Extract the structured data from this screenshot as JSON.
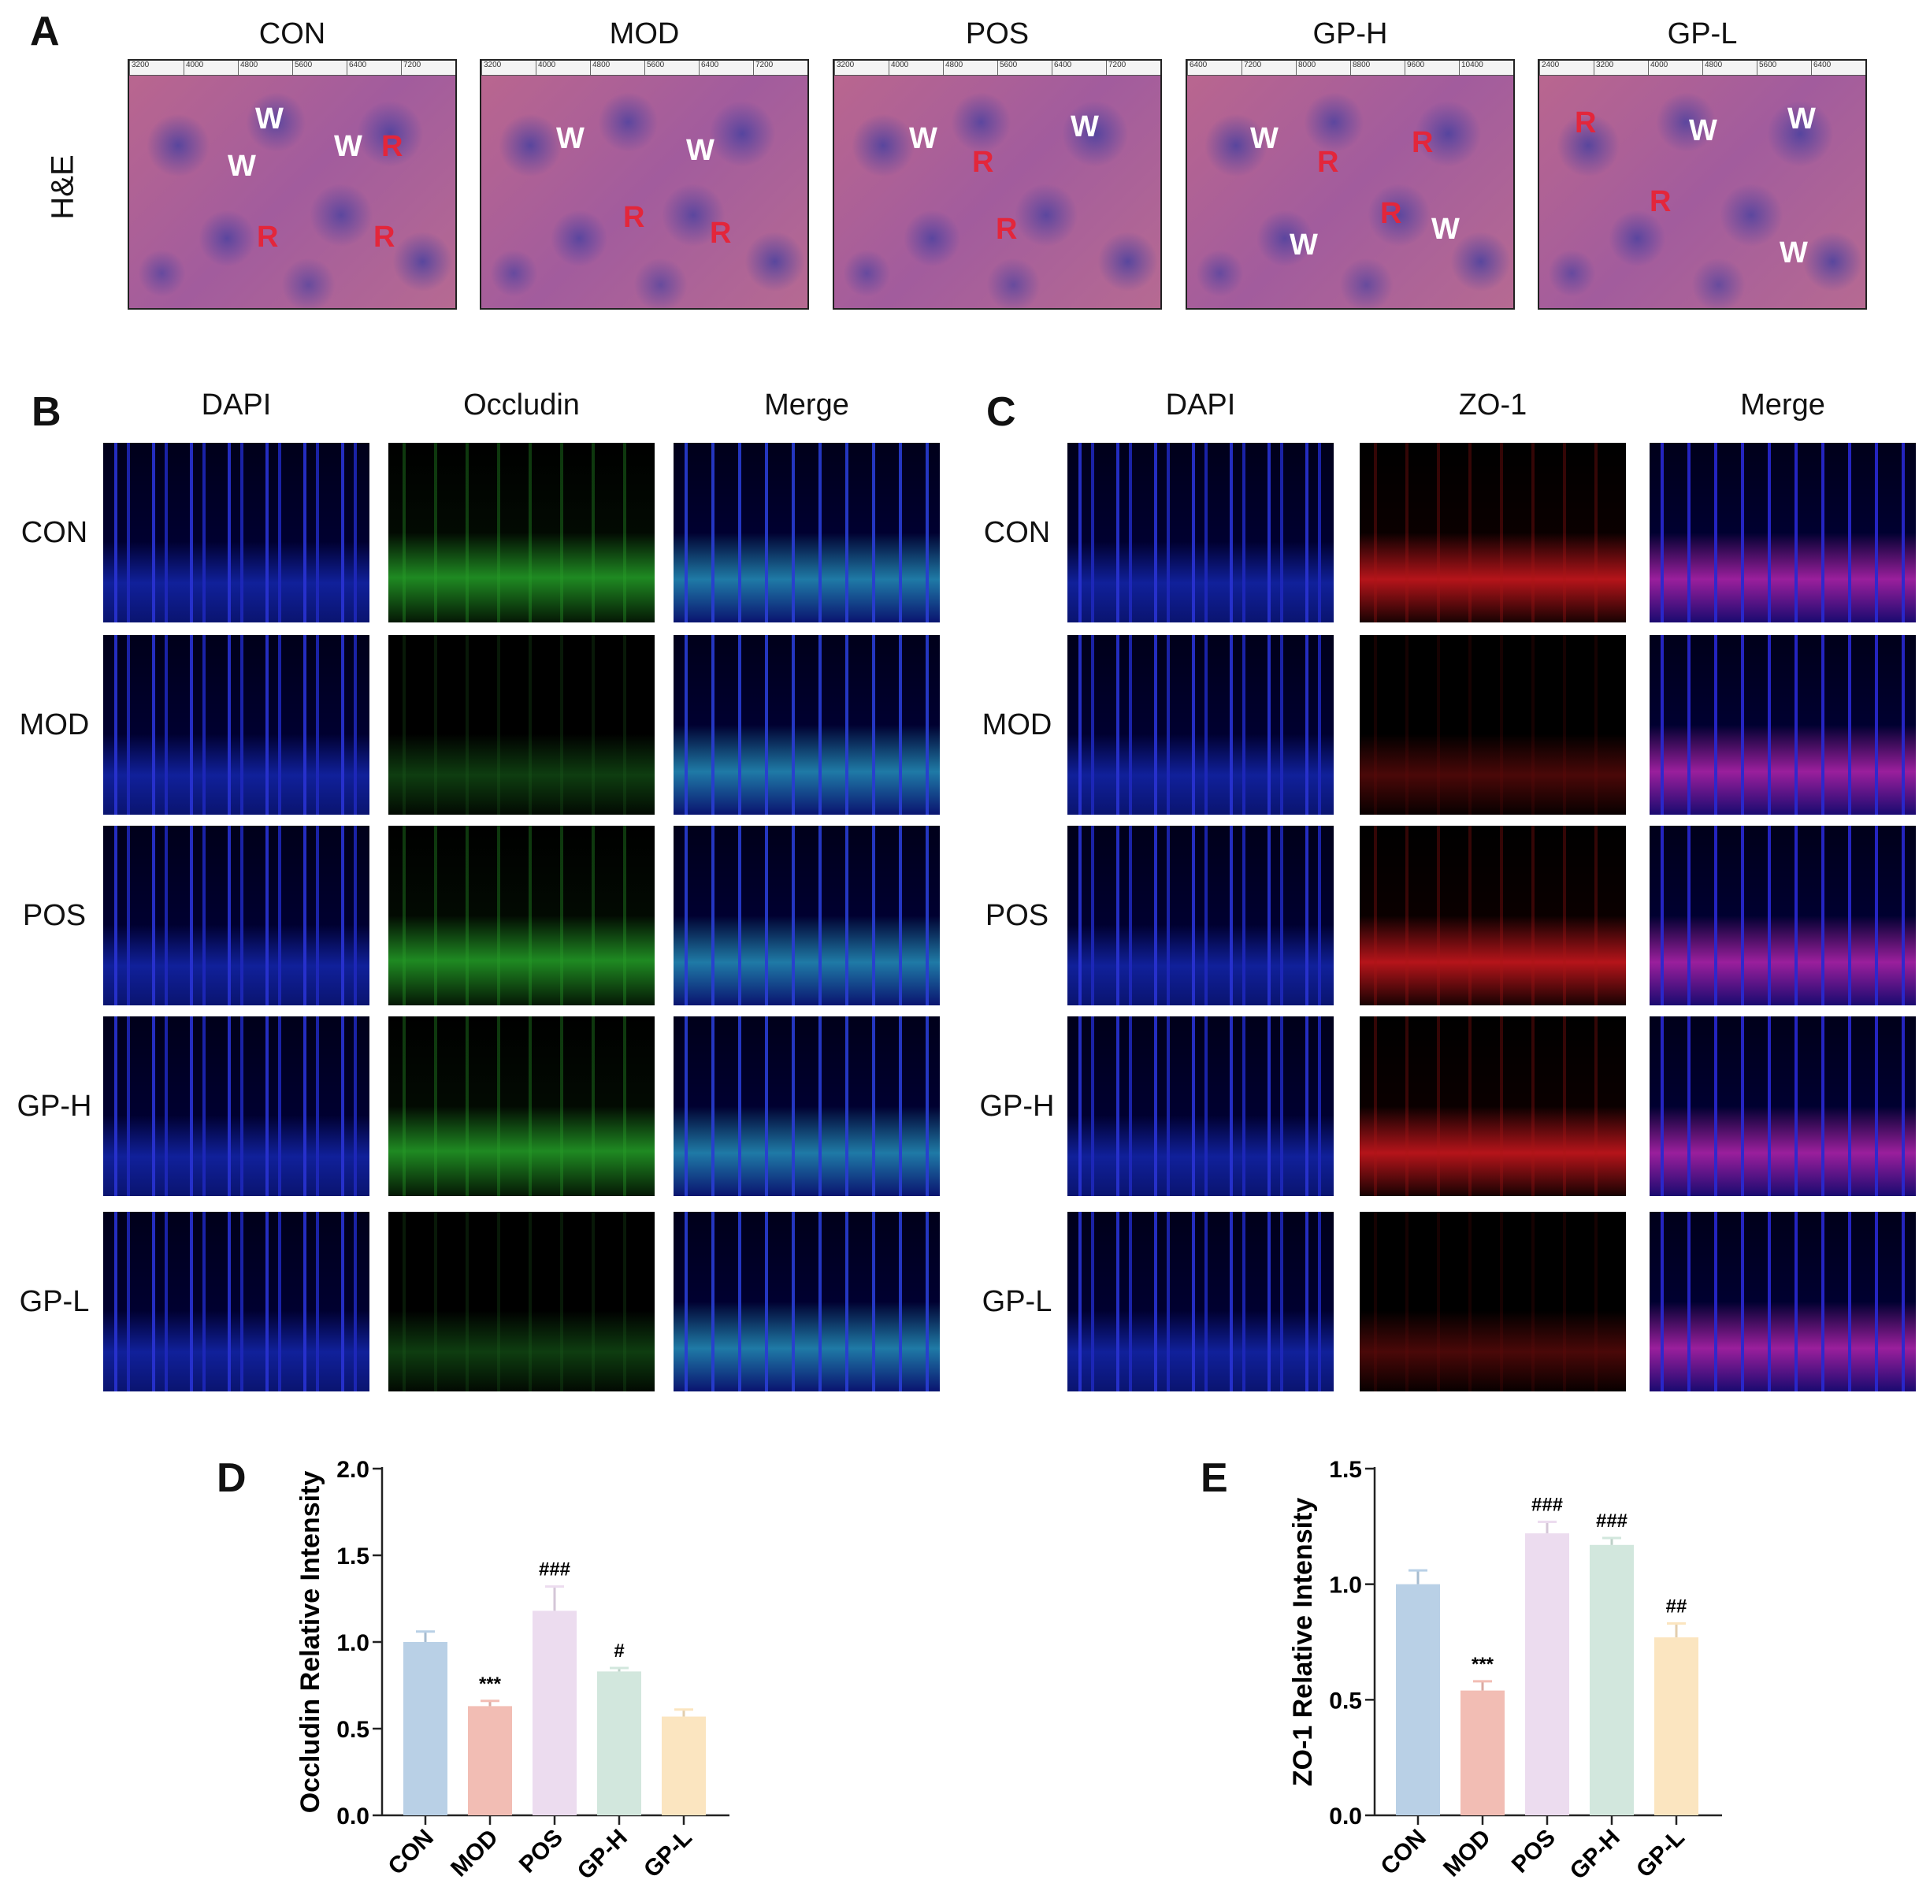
{
  "panelA": {
    "letter": "A",
    "row_label": "H&E",
    "groups": [
      "CON",
      "MOD",
      "POS",
      "GP-H",
      "GP-L"
    ],
    "rulers": [
      [
        "3200",
        "4000",
        "4800",
        "5600",
        "6400",
        "7200"
      ],
      [
        "3200",
        "4000",
        "4800",
        "5600",
        "6400",
        "7200"
      ],
      [
        "3200",
        "4000",
        "4800",
        "5600",
        "6400",
        "7200"
      ],
      [
        "6400",
        "7200",
        "8000",
        "8800",
        "9600",
        "10400"
      ],
      [
        "2400",
        "3200",
        "4000",
        "4800",
        "5600",
        "6400"
      ]
    ],
    "markers": {
      "W": "W",
      "R": "R"
    }
  },
  "panelB": {
    "letter": "B",
    "columns": [
      "DAPI",
      "Occludin",
      "Merge"
    ],
    "rows": [
      "CON",
      "MOD",
      "POS",
      "GP-H",
      "GP-L"
    ]
  },
  "panelC": {
    "letter": "C",
    "columns": [
      "DAPI",
      "ZO-1",
      "Merge"
    ],
    "rows": [
      "CON",
      "MOD",
      "POS",
      "GP-H",
      "GP-L"
    ]
  },
  "colors": {
    "CON": "#b9d0e6",
    "MOD": "#f2bdb4",
    "POS": "#ecdcef",
    "GP-H": "#d2e7dd",
    "GP-L": "#fbe5c0"
  },
  "chart_data": [
    {
      "type": "bar",
      "panel": "D",
      "categories": [
        "CON",
        "MOD",
        "POS",
        "GP-H",
        "GP-L"
      ],
      "values": [
        1.0,
        0.63,
        1.18,
        0.83,
        0.57
      ],
      "errors": [
        0.06,
        0.03,
        0.14,
        0.02,
        0.04
      ],
      "annotations": [
        "",
        "***",
        "###",
        "#",
        ""
      ],
      "ylabel": "Occludin Relative Intensity",
      "ylim": [
        0,
        2.0
      ],
      "yticks": [
        "0.0",
        "0.5",
        "1.0",
        "1.5",
        "2.0"
      ]
    },
    {
      "type": "bar",
      "panel": "E",
      "categories": [
        "CON",
        "MOD",
        "POS",
        "GP-H",
        "GP-L"
      ],
      "values": [
        1.0,
        0.54,
        1.22,
        1.17,
        0.77
      ],
      "errors": [
        0.06,
        0.04,
        0.05,
        0.03,
        0.06
      ],
      "annotations": [
        "",
        "***",
        "###",
        "###",
        "##"
      ],
      "ylabel": "ZO-1 Relative Intensity",
      "ylim": [
        0,
        1.5
      ],
      "yticks": [
        "0.0",
        "0.5",
        "1.0",
        "1.5"
      ]
    }
  ]
}
